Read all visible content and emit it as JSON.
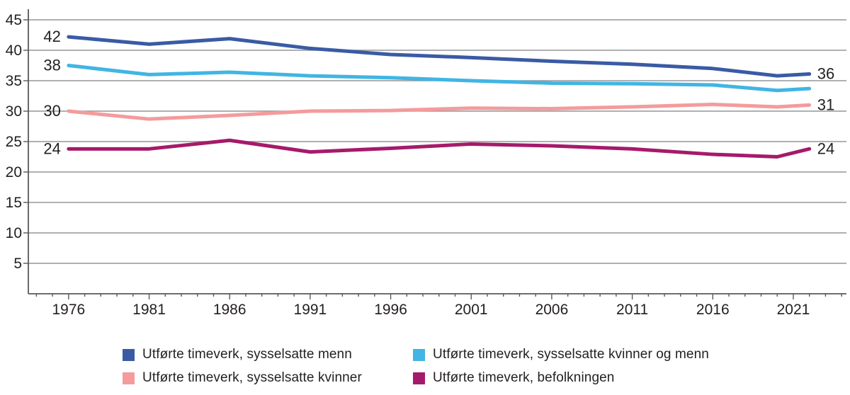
{
  "colors": {
    "background": "#ffffff",
    "gridline": "#939598",
    "axis": "#58595B",
    "text": "#231F20"
  },
  "chart_data": {
    "type": "line",
    "title": "",
    "xlabel": "",
    "ylabel": "",
    "x": [
      1976,
      1981,
      1986,
      1991,
      1996,
      2001,
      2006,
      2011,
      2016,
      2020,
      2022
    ],
    "series": [
      {
        "name": "Utførte timeverk, sysselsatte menn",
        "color": "#3A5BA4",
        "values": [
          42.2,
          41.0,
          41.9,
          40.3,
          39.3,
          38.8,
          38.2,
          37.7,
          37.0,
          35.8,
          36.1
        ],
        "label_start": "42",
        "label_end": "36"
      },
      {
        "name": "Utførte timeverk, sysselsatte kvinner og menn",
        "color": "#41B5E3",
        "values": [
          37.5,
          36.0,
          36.4,
          35.8,
          35.5,
          35.0,
          34.6,
          34.5,
          34.3,
          33.4,
          33.7
        ],
        "label_start": "38",
        "label_end": null
      },
      {
        "name": "Utførte timeverk, sysselsatte kvinner",
        "color": "#F49B9C",
        "values": [
          30.0,
          28.7,
          29.3,
          30.0,
          30.1,
          30.5,
          30.4,
          30.7,
          31.1,
          30.7,
          31.0
        ],
        "label_start": "30",
        "label_end": "31"
      },
      {
        "name": "Utførte timeverk, befolkningen",
        "color": "#A51A6B",
        "values": [
          23.8,
          23.8,
          25.2,
          23.3,
          23.9,
          24.6,
          24.3,
          23.8,
          22.9,
          22.5,
          23.8
        ],
        "label_start": "24",
        "label_end": "24"
      }
    ],
    "y_ticks": [
      5,
      10,
      15,
      20,
      25,
      30,
      35,
      40,
      45
    ],
    "x_major_ticks": [
      1976,
      1981,
      1986,
      1991,
      1996,
      2001,
      2006,
      2011,
      2016,
      2021
    ],
    "x_minor_tick_range": [
      1974,
      2024
    ],
    "xlim": [
      1973.5,
      2024.3
    ],
    "ylim": [
      0,
      46.8
    ],
    "grid": "horizontal-on",
    "legend_position": "bottom"
  }
}
